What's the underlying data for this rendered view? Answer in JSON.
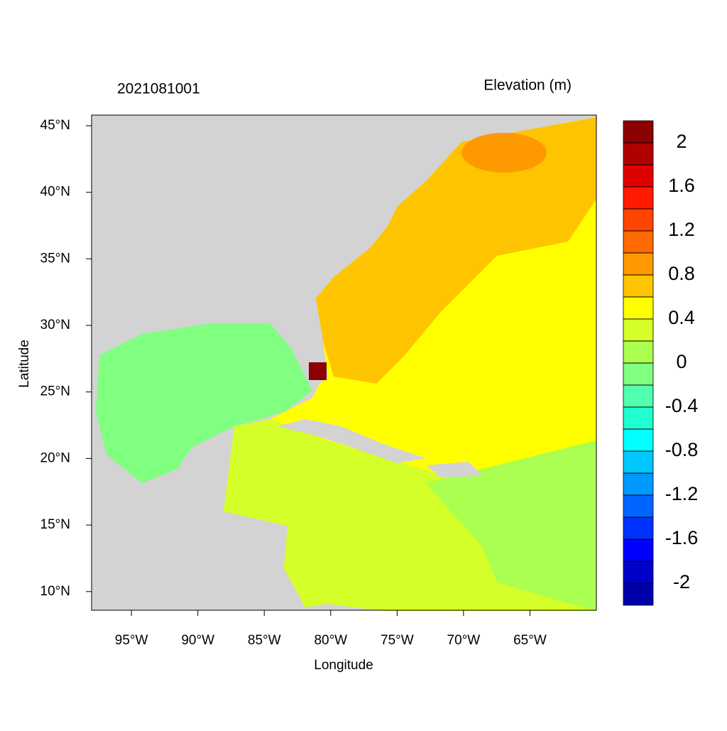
{
  "chart_data": {
    "type": "map",
    "title": "2021081001",
    "subtitle": "Elevation (m)",
    "x_label": "Longitude",
    "y_label": "Latitude",
    "xlim": [
      -98,
      -60
    ],
    "ylim": [
      8.6,
      45.8
    ],
    "xticks": [
      {
        "value": -95,
        "label": "95°W"
      },
      {
        "value": -90,
        "label": "90°W"
      },
      {
        "value": -85,
        "label": "85°W"
      },
      {
        "value": -80,
        "label": "80°W"
      },
      {
        "value": -75,
        "label": "75°W"
      },
      {
        "value": -70,
        "label": "70°W"
      },
      {
        "value": -65,
        "label": "65°W"
      }
    ],
    "yticks": [
      {
        "value": 10,
        "label": "10°N"
      },
      {
        "value": 15,
        "label": "15°N"
      },
      {
        "value": 20,
        "label": "20°N"
      },
      {
        "value": 25,
        "label": "25°N"
      },
      {
        "value": 30,
        "label": "30°N"
      },
      {
        "value": 35,
        "label": "35°N"
      },
      {
        "value": 40,
        "label": "40°N"
      },
      {
        "value": 45,
        "label": "45°N"
      }
    ],
    "colorbar": {
      "levels": [
        -2,
        -1.8,
        -1.6,
        -1.4,
        -1.2,
        -1,
        -0.8,
        -0.6,
        -0.4,
        -0.2,
        0,
        0.2,
        0.4,
        0.6,
        0.8,
        1,
        1.2,
        1.4,
        1.6,
        1.8,
        2
      ],
      "ticks": [
        -2,
        -1.6,
        -1.2,
        -0.8,
        -0.4,
        0,
        0.4,
        0.8,
        1.2,
        1.6,
        2
      ],
      "colors": [
        "#0000aa",
        "#0000cd",
        "#0000ff",
        "#0033ff",
        "#0066ff",
        "#0099ff",
        "#00c8ff",
        "#00ffff",
        "#20ffd0",
        "#50ffb0",
        "#80ff80",
        "#aaff50",
        "#d4ff28",
        "#ffff00",
        "#ffc400",
        "#ff9900",
        "#ff6a00",
        "#ff4500",
        "#ff1a00",
        "#e00000",
        "#b00000",
        "#8b0000"
      ]
    }
  }
}
